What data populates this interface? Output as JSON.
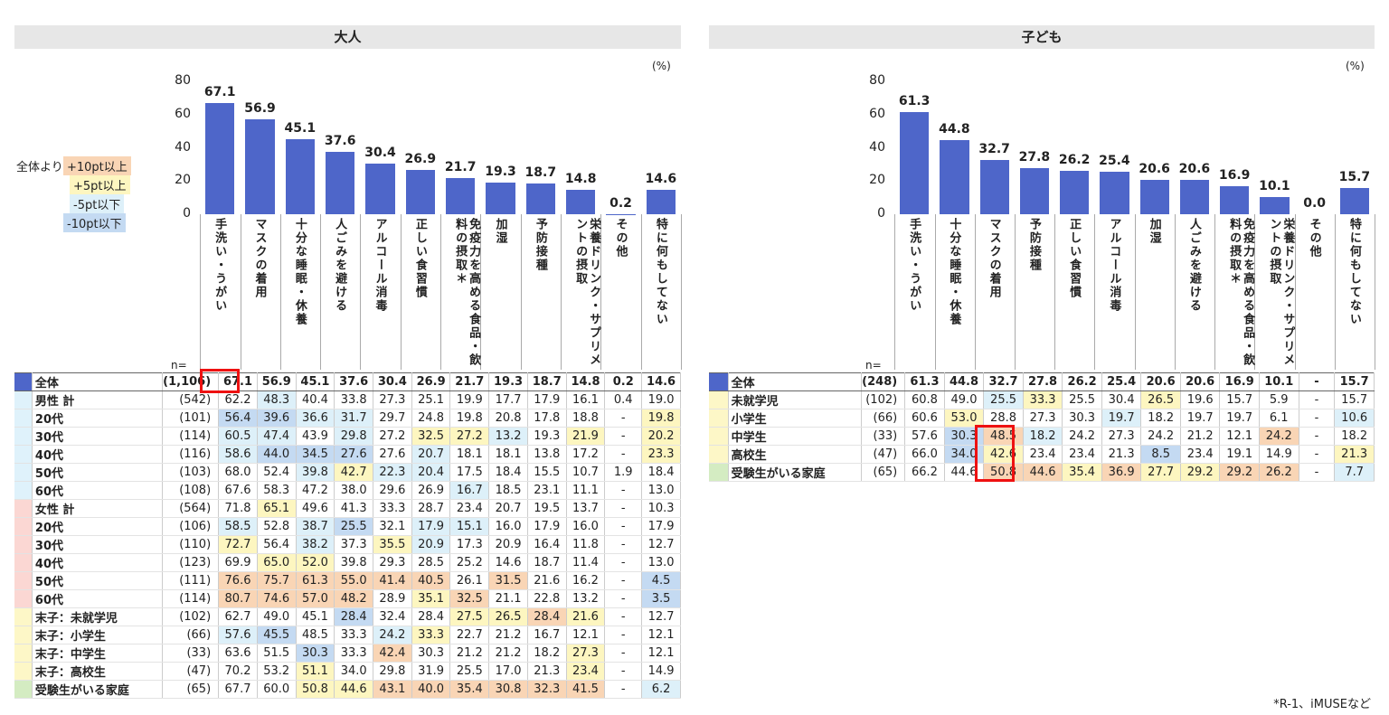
{
  "legend": {
    "prefix": "全体より",
    "items": [
      {
        "label": "+10pt以上",
        "color": "#f9d5b5"
      },
      {
        "label": "+5pt以上",
        "color": "#fdf6c0"
      },
      {
        "label": "-5pt以下",
        "color": "#ddf0f9"
      },
      {
        "label": "-10pt以下",
        "color": "#c4daf2"
      }
    ]
  },
  "footnote": "*R-1、iMUSEなど",
  "chart_data": [
    {
      "type": "bar",
      "title": "大人",
      "unit": "(%)",
      "n_label": "n=",
      "ylim": [
        0,
        80
      ],
      "yticks": [
        0,
        20,
        40,
        60,
        80
      ],
      "categories": [
        "手洗い・うがい",
        "マスクの着用",
        "十分な睡眠・休養",
        "人ごみを避ける",
        "アルコール消毒",
        "正しい食習慣",
        "免疫力を高める食品・飲料の摂取＊",
        "加湿",
        "予防接種",
        "栄養ドリンク・サプリメントの摂取",
        "その他",
        "特に何もしてない"
      ],
      "values": [
        67.1,
        56.9,
        45.1,
        37.6,
        30.4,
        26.9,
        21.7,
        19.3,
        18.7,
        14.8,
        0.2,
        14.6
      ],
      "value_labels": [
        "67.1",
        "56.9",
        "45.1",
        "37.6",
        "30.4",
        "26.9",
        "21.7",
        "19.3",
        "18.7",
        "14.8",
        "0.2",
        "14.6"
      ],
      "rows": [
        {
          "label": "全体",
          "n": "(1,106)",
          "group": "total",
          "values": [
            "67.1",
            "56.9",
            "45.1",
            "37.6",
            "30.4",
            "26.9",
            "21.7",
            "19.3",
            "18.7",
            "14.8",
            "0.2",
            "14.6"
          ],
          "shade": [
            0,
            0,
            0,
            0,
            0,
            0,
            0,
            0,
            0,
            0,
            0,
            0
          ]
        },
        {
          "label": "男性 計",
          "n": "(542)",
          "group": "male",
          "values": [
            "62.2",
            "48.3",
            "40.4",
            "33.8",
            "27.3",
            "25.1",
            "19.9",
            "17.7",
            "17.9",
            "16.1",
            "0.4",
            "19.0"
          ],
          "shade": [
            0,
            3,
            0,
            0,
            0,
            0,
            0,
            0,
            0,
            0,
            0,
            0
          ]
        },
        {
          "label": "20代",
          "n": "(101)",
          "group": "male",
          "values": [
            "56.4",
            "39.6",
            "36.6",
            "31.7",
            "29.7",
            "24.8",
            "19.8",
            "20.8",
            "17.8",
            "18.8",
            "-",
            "19.8"
          ],
          "shade": [
            4,
            4,
            3,
            3,
            0,
            0,
            0,
            0,
            0,
            0,
            0,
            2
          ]
        },
        {
          "label": "30代",
          "n": "(114)",
          "group": "male",
          "values": [
            "60.5",
            "47.4",
            "43.9",
            "29.8",
            "27.2",
            "32.5",
            "27.2",
            "13.2",
            "19.3",
            "21.9",
            "-",
            "20.2"
          ],
          "shade": [
            3,
            3,
            0,
            3,
            0,
            2,
            2,
            3,
            0,
            2,
            0,
            2
          ]
        },
        {
          "label": "40代",
          "n": "(116)",
          "group": "male",
          "values": [
            "58.6",
            "44.0",
            "34.5",
            "27.6",
            "27.6",
            "20.7",
            "18.1",
            "18.1",
            "13.8",
            "17.2",
            "-",
            "23.3"
          ],
          "shade": [
            3,
            4,
            4,
            4,
            0,
            3,
            0,
            0,
            0,
            0,
            0,
            2
          ]
        },
        {
          "label": "50代",
          "n": "(103)",
          "group": "male",
          "values": [
            "68.0",
            "52.4",
            "39.8",
            "42.7",
            "22.3",
            "20.4",
            "17.5",
            "18.4",
            "15.5",
            "10.7",
            "1.9",
            "18.4"
          ],
          "shade": [
            0,
            0,
            3,
            2,
            3,
            3,
            0,
            0,
            0,
            0,
            0,
            0
          ]
        },
        {
          "label": "60代",
          "n": "(108)",
          "group": "male",
          "values": [
            "67.6",
            "58.3",
            "47.2",
            "38.0",
            "29.6",
            "26.9",
            "16.7",
            "18.5",
            "23.1",
            "11.1",
            "-",
            "13.0"
          ],
          "shade": [
            0,
            0,
            0,
            0,
            0,
            0,
            3,
            0,
            0,
            0,
            0,
            0
          ]
        },
        {
          "label": "女性 計",
          "n": "(564)",
          "group": "female",
          "values": [
            "71.8",
            "65.1",
            "49.6",
            "41.3",
            "33.3",
            "28.7",
            "23.4",
            "20.7",
            "19.5",
            "13.7",
            "-",
            "10.3"
          ],
          "shade": [
            0,
            2,
            0,
            0,
            0,
            0,
            0,
            0,
            0,
            0,
            0,
            0
          ]
        },
        {
          "label": "20代",
          "n": "(106)",
          "group": "female",
          "values": [
            "58.5",
            "52.8",
            "38.7",
            "25.5",
            "32.1",
            "17.9",
            "15.1",
            "16.0",
            "17.9",
            "16.0",
            "-",
            "17.9"
          ],
          "shade": [
            3,
            0,
            3,
            4,
            0,
            3,
            3,
            0,
            0,
            0,
            0,
            0
          ]
        },
        {
          "label": "30代",
          "n": "(110)",
          "group": "female",
          "values": [
            "72.7",
            "56.4",
            "38.2",
            "37.3",
            "35.5",
            "20.9",
            "17.3",
            "20.9",
            "16.4",
            "11.8",
            "-",
            "12.7"
          ],
          "shade": [
            2,
            0,
            3,
            0,
            2,
            3,
            0,
            0,
            0,
            0,
            0,
            0
          ]
        },
        {
          "label": "40代",
          "n": "(123)",
          "group": "female",
          "values": [
            "69.9",
            "65.0",
            "52.0",
            "39.8",
            "29.3",
            "28.5",
            "25.2",
            "14.6",
            "18.7",
            "11.4",
            "-",
            "13.0"
          ],
          "shade": [
            0,
            2,
            2,
            0,
            0,
            0,
            0,
            0,
            0,
            0,
            0,
            0
          ]
        },
        {
          "label": "50代",
          "n": "(111)",
          "group": "female",
          "values": [
            "76.6",
            "75.7",
            "61.3",
            "55.0",
            "41.4",
            "40.5",
            "26.1",
            "31.5",
            "21.6",
            "16.2",
            "-",
            "4.5"
          ],
          "shade": [
            1,
            1,
            1,
            1,
            1,
            1,
            0,
            1,
            0,
            0,
            0,
            4
          ]
        },
        {
          "label": "60代",
          "n": "(114)",
          "group": "female",
          "values": [
            "80.7",
            "74.6",
            "57.0",
            "48.2",
            "28.9",
            "35.1",
            "32.5",
            "21.1",
            "22.8",
            "13.2",
            "-",
            "3.5"
          ],
          "shade": [
            1,
            1,
            1,
            1,
            0,
            2,
            1,
            0,
            0,
            0,
            0,
            4
          ]
        },
        {
          "label": "末子：未就学児",
          "n": "(102)",
          "group": "child",
          "values": [
            "62.7",
            "49.0",
            "45.1",
            "28.4",
            "32.4",
            "28.4",
            "27.5",
            "26.5",
            "28.4",
            "21.6",
            "-",
            "12.7"
          ],
          "shade": [
            0,
            0,
            0,
            4,
            0,
            0,
            2,
            2,
            1,
            2,
            0,
            0
          ]
        },
        {
          "label": "末子：小学生",
          "n": "(66)",
          "group": "child",
          "values": [
            "57.6",
            "45.5",
            "48.5",
            "33.3",
            "24.2",
            "33.3",
            "22.7",
            "21.2",
            "16.7",
            "12.1",
            "-",
            "12.1"
          ],
          "shade": [
            3,
            4,
            0,
            0,
            3,
            2,
            0,
            0,
            0,
            0,
            0,
            0
          ]
        },
        {
          "label": "末子：中学生",
          "n": "(33)",
          "group": "child",
          "values": [
            "63.6",
            "51.5",
            "30.3",
            "33.3",
            "42.4",
            "30.3",
            "21.2",
            "21.2",
            "18.2",
            "27.3",
            "-",
            "12.1"
          ],
          "shade": [
            0,
            0,
            4,
            0,
            1,
            0,
            0,
            0,
            0,
            2,
            0,
            0
          ]
        },
        {
          "label": "末子：高校生",
          "n": "(47)",
          "group": "child",
          "values": [
            "70.2",
            "53.2",
            "51.1",
            "34.0",
            "29.8",
            "31.9",
            "25.5",
            "17.0",
            "21.3",
            "23.4",
            "-",
            "14.9"
          ],
          "shade": [
            0,
            0,
            2,
            0,
            0,
            0,
            0,
            0,
            0,
            2,
            0,
            0
          ]
        },
        {
          "label": "受験生がいる家庭",
          "n": "(65)",
          "group": "exam",
          "values": [
            "67.7",
            "60.0",
            "50.8",
            "44.6",
            "43.1",
            "40.0",
            "35.4",
            "30.8",
            "32.3",
            "41.5",
            "-",
            "6.2"
          ],
          "shade": [
            0,
            0,
            2,
            2,
            1,
            1,
            1,
            1,
            1,
            1,
            0,
            3
          ]
        }
      ]
    },
    {
      "type": "bar",
      "title": "子ども",
      "unit": "(%)",
      "n_label": "n=",
      "ylim": [
        0,
        80
      ],
      "yticks": [
        0,
        20,
        40,
        60,
        80
      ],
      "categories": [
        "手洗い・うがい",
        "十分な睡眠・休養",
        "マスクの着用",
        "予防接種",
        "正しい食習慣",
        "アルコール消毒",
        "加湿",
        "人ごみを避ける",
        "免疫力を高める食品・飲料の摂取＊",
        "栄養ドリンク・サプリメントの摂取",
        "その他",
        "特に何もしてない"
      ],
      "values": [
        61.3,
        44.8,
        32.7,
        27.8,
        26.2,
        25.4,
        20.6,
        20.6,
        16.9,
        10.1,
        0.0,
        15.7
      ],
      "value_labels": [
        "61.3",
        "44.8",
        "32.7",
        "27.8",
        "26.2",
        "25.4",
        "20.6",
        "20.6",
        "16.9",
        "10.1",
        "0.0",
        "15.7"
      ],
      "rows": [
        {
          "label": "全体",
          "n": "(248)",
          "group": "total",
          "values": [
            "61.3",
            "44.8",
            "32.7",
            "27.8",
            "26.2",
            "25.4",
            "20.6",
            "20.6",
            "16.9",
            "10.1",
            "-",
            "15.7"
          ],
          "shade": [
            0,
            0,
            0,
            0,
            0,
            0,
            0,
            0,
            0,
            0,
            0,
            0
          ]
        },
        {
          "label": "未就学児",
          "n": "(102)",
          "group": "child",
          "values": [
            "60.8",
            "49.0",
            "25.5",
            "33.3",
            "25.5",
            "30.4",
            "26.5",
            "19.6",
            "15.7",
            "5.9",
            "-",
            "15.7"
          ],
          "shade": [
            0,
            0,
            3,
            2,
            0,
            0,
            2,
            0,
            0,
            0,
            0,
            0
          ]
        },
        {
          "label": "小学生",
          "n": "(66)",
          "group": "child",
          "values": [
            "60.6",
            "53.0",
            "28.8",
            "27.3",
            "30.3",
            "19.7",
            "18.2",
            "19.7",
            "19.7",
            "6.1",
            "-",
            "10.6"
          ],
          "shade": [
            0,
            2,
            0,
            0,
            0,
            3,
            0,
            0,
            0,
            0,
            0,
            3
          ]
        },
        {
          "label": "中学生",
          "n": "(33)",
          "group": "child",
          "values": [
            "57.6",
            "30.3",
            "48.5",
            "18.2",
            "24.2",
            "27.3",
            "24.2",
            "21.2",
            "12.1",
            "24.2",
            "-",
            "18.2"
          ],
          "shade": [
            0,
            4,
            1,
            3,
            0,
            0,
            0,
            0,
            0,
            1,
            0,
            0
          ]
        },
        {
          "label": "高校生",
          "n": "(47)",
          "group": "child",
          "values": [
            "66.0",
            "34.0",
            "42.6",
            "23.4",
            "23.4",
            "21.3",
            "8.5",
            "23.4",
            "19.1",
            "14.9",
            "-",
            "21.3"
          ],
          "shade": [
            0,
            4,
            2,
            0,
            0,
            0,
            4,
            0,
            0,
            0,
            0,
            2
          ]
        },
        {
          "label": "受験生がいる家庭",
          "n": "(65)",
          "group": "exam",
          "values": [
            "66.2",
            "44.6",
            "50.8",
            "44.6",
            "35.4",
            "36.9",
            "27.7",
            "29.2",
            "29.2",
            "26.2",
            "-",
            "7.7"
          ],
          "shade": [
            0,
            0,
            1,
            1,
            2,
            1,
            2,
            2,
            1,
            1,
            0,
            3
          ]
        }
      ]
    }
  ]
}
